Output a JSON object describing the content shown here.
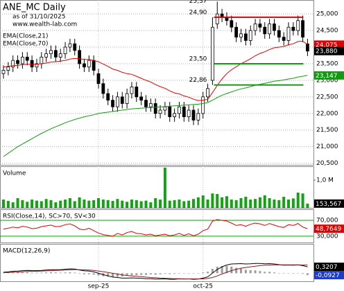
{
  "chart_data": [
    {
      "type": "candlestick",
      "title": "ANE_MC Daily",
      "subtitle": "as of 31/10/2025",
      "source": "www.wealth-lab.com",
      "categories": [
        null,
        null,
        null,
        null,
        null,
        null,
        null,
        null,
        null,
        null,
        null,
        null,
        null,
        null,
        null,
        null,
        null,
        null,
        null,
        null,
        "sep-25",
        null,
        null,
        null,
        null,
        null,
        null,
        null,
        null,
        null,
        null,
        null,
        null,
        null,
        null,
        null,
        null,
        null,
        null,
        null,
        null,
        null,
        "oct-25",
        null,
        null,
        null,
        null,
        null,
        null,
        null,
        null,
        null,
        null,
        null,
        null,
        null,
        null,
        null,
        null,
        null,
        null,
        null,
        null,
        null,
        null
      ],
      "open": [
        23.2,
        23.3,
        23.4,
        23.6,
        23.5,
        23.7,
        23.6,
        23.4,
        23.5,
        23.7,
        23.8,
        23.9,
        23.7,
        23.8,
        24.0,
        24.1,
        23.9,
        23.5,
        23.4,
        23.6,
        23.2,
        22.9,
        22.6,
        22.4,
        22.2,
        22.5,
        22.3,
        22.6,
        22.8,
        22.5,
        22.4,
        22.2,
        22.3,
        22.0,
        22.1,
        22.2,
        21.9,
        22.0,
        22.2,
        21.9,
        22.1,
        21.8,
        22.0,
        22.5,
        23.0,
        24.7,
        25.0,
        24.9,
        24.8,
        24.6,
        24.3,
        24.4,
        24.2,
        24.5,
        24.7,
        24.6,
        24.4,
        24.7,
        24.5,
        24.3,
        24.2,
        24.6,
        24.5,
        24.8,
        24.1
      ],
      "high": [
        23.45,
        23.55,
        23.75,
        23.75,
        23.85,
        23.85,
        23.75,
        23.65,
        23.85,
        23.95,
        24.05,
        24.05,
        23.95,
        24.15,
        24.25,
        24.25,
        24.05,
        23.65,
        23.75,
        23.75,
        23.35,
        23.05,
        22.75,
        22.55,
        22.65,
        22.65,
        22.75,
        22.95,
        22.95,
        22.65,
        22.55,
        22.45,
        22.45,
        22.25,
        22.35,
        22.35,
        22.15,
        22.35,
        22.35,
        22.25,
        22.25,
        22.15,
        22.65,
        22.9,
        24.9,
        25.37,
        25.15,
        25.05,
        24.95,
        24.75,
        24.55,
        24.55,
        24.65,
        24.85,
        24.85,
        24.75,
        24.85,
        24.85,
        24.65,
        24.45,
        24.75,
        24.75,
        24.95,
        24.95,
        24.25
      ],
      "low": [
        23.05,
        23.15,
        23.25,
        23.35,
        23.35,
        23.45,
        23.25,
        23.25,
        23.35,
        23.55,
        23.65,
        23.55,
        23.55,
        23.65,
        23.85,
        23.75,
        23.35,
        23.25,
        23.25,
        23.15,
        22.75,
        22.45,
        22.25,
        22.05,
        22.05,
        22.15,
        22.15,
        22.45,
        22.35,
        22.25,
        22.05,
        22.05,
        21.85,
        21.85,
        21.95,
        21.75,
        21.75,
        21.85,
        21.75,
        21.75,
        21.65,
        21.65,
        21.85,
        22.35,
        22.86,
        24.55,
        24.75,
        24.65,
        24.45,
        24.15,
        24.15,
        24.05,
        24.05,
        24.35,
        24.45,
        24.25,
        24.25,
        24.35,
        24.15,
        24.05,
        24.05,
        24.35,
        24.35,
        24.15,
        23.73
      ],
      "close": [
        23.3,
        23.4,
        23.6,
        23.5,
        23.7,
        23.6,
        23.4,
        23.5,
        23.7,
        23.8,
        23.9,
        23.7,
        23.8,
        24.0,
        24.1,
        23.9,
        23.5,
        23.4,
        23.6,
        23.3,
        22.9,
        22.6,
        22.4,
        22.2,
        22.5,
        22.3,
        22.6,
        22.8,
        22.5,
        22.4,
        22.2,
        22.3,
        22.0,
        22.1,
        22.2,
        21.9,
        22.0,
        22.2,
        21.9,
        22.1,
        21.8,
        22.0,
        22.5,
        22.75,
        24.6,
        25.0,
        24.9,
        24.8,
        24.6,
        24.3,
        24.4,
        24.2,
        24.5,
        24.7,
        24.6,
        24.4,
        24.7,
        24.5,
        24.3,
        24.2,
        24.6,
        24.5,
        24.8,
        24.3,
        23.88
      ],
      "last_label": "23,880",
      "ylim": [
        20.45,
        25.42
      ],
      "yticks": [
        {
          "value": 20.5,
          "label": "20,500"
        },
        {
          "value": 21,
          "label": "21,000"
        },
        {
          "value": 21.5,
          "label": "21,500"
        },
        {
          "value": 22,
          "label": "22,000"
        },
        {
          "value": 22.5,
          "label": "22,500"
        },
        {
          "value": 23,
          "label": "23,000"
        },
        {
          "value": 23.5,
          "label": "23,500"
        },
        {
          "value": 24,
          "label": "24,000"
        },
        {
          "value": 24.5,
          "label": "24,500"
        },
        {
          "value": 25,
          "label": "25,000"
        }
      ],
      "grid": true,
      "series": [
        {
          "name": "EMA(Close,21)",
          "color": "#e00000",
          "last_label": "24,075",
          "values": [
            23.4,
            23.42,
            23.44,
            23.45,
            23.47,
            23.48,
            23.48,
            23.48,
            23.5,
            23.52,
            23.55,
            23.56,
            23.58,
            23.6,
            23.64,
            23.66,
            23.65,
            23.63,
            23.63,
            23.6,
            23.56,
            23.49,
            23.42,
            23.34,
            23.3,
            23.24,
            23.2,
            23.18,
            23.12,
            23.06,
            23.0,
            22.95,
            22.87,
            22.81,
            22.76,
            22.68,
            22.62,
            22.59,
            22.53,
            22.49,
            22.43,
            22.39,
            22.4,
            22.43,
            22.63,
            22.85,
            23.04,
            23.2,
            23.32,
            23.41,
            23.5,
            23.57,
            23.65,
            23.74,
            23.81,
            23.86,
            23.93,
            23.98,
            24.0,
            24.02,
            24.07,
            24.1,
            24.17,
            24.18,
            24.075
          ]
        },
        {
          "name": "EMA(Close,70)",
          "color": "#139a13",
          "last_label": "23,147",
          "values": [
            20.7,
            20.8,
            20.9,
            21.0,
            21.08,
            21.16,
            21.24,
            21.32,
            21.4,
            21.47,
            21.54,
            21.6,
            21.66,
            21.72,
            21.77,
            21.82,
            21.86,
            21.9,
            21.93,
            21.96,
            22.0,
            22.02,
            22.04,
            22.06,
            22.08,
            22.1,
            22.12,
            22.14,
            22.15,
            22.16,
            22.17,
            22.18,
            22.19,
            22.2,
            22.21,
            22.22,
            22.23,
            22.24,
            22.25,
            22.26,
            22.27,
            22.28,
            22.3,
            22.33,
            22.4,
            22.48,
            22.55,
            22.6,
            22.65,
            22.7,
            22.74,
            22.77,
            22.81,
            22.85,
            22.88,
            22.91,
            22.94,
            22.97,
            22.99,
            23.01,
            23.04,
            23.06,
            23.1,
            23.12,
            23.147
          ]
        }
      ],
      "levels": [
        {
          "value": 24.9,
          "label": "24,90",
          "color": "#e00000"
        },
        {
          "value": 23.5,
          "label": "23,50",
          "color": "#139a13"
        },
        {
          "value": 22.86,
          "label": "22,86",
          "color": "#139a13"
        }
      ],
      "annotations": [
        {
          "value": 25.37,
          "label": "25,37"
        }
      ]
    },
    {
      "type": "bar",
      "title": "Volume",
      "color": "#13a313",
      "last_label": "153,567",
      "values": [
        300000,
        250000,
        200000,
        350000,
        280000,
        220000,
        300000,
        260000,
        240000,
        320000,
        280000,
        200000,
        260000,
        300000,
        350000,
        240000,
        380000,
        300000,
        260000,
        280000,
        350000,
        300000,
        280000,
        250000,
        320000,
        260000,
        220000,
        300000,
        280000,
        240000,
        260000,
        200000,
        350000,
        300000,
        1450000,
        260000,
        280000,
        300000,
        240000,
        260000,
        320000,
        380000,
        450000,
        300000,
        520000,
        500000,
        380000,
        420000,
        300000,
        280000,
        350000,
        400000,
        300000,
        320000,
        380000,
        450000,
        350000,
        300000,
        280000,
        400000,
        300000,
        340000,
        550000,
        520000,
        153567
      ],
      "ylim": [
        0,
        1500000
      ],
      "yticks": [
        {
          "value": 1000000,
          "label": "1,0 M"
        }
      ]
    },
    {
      "type": "line",
      "title": "RSI(Close,14), SC>70, SV<30",
      "grid": true,
      "grid_color": "#139a13",
      "series": [
        {
          "color": "#e00000",
          "last_label": "48,7649",
          "values": [
            48,
            50,
            53,
            51,
            55,
            53,
            49,
            50,
            54,
            56,
            58,
            54,
            55,
            59,
            61,
            56,
            48,
            46,
            50,
            44,
            38,
            34,
            32,
            30,
            37,
            33,
            39,
            42,
            37,
            36,
            33,
            35,
            31,
            33,
            35,
            31,
            33,
            37,
            32,
            36,
            31,
            35,
            44,
            48,
            68,
            72,
            70,
            68,
            63,
            57,
            59,
            55,
            60,
            63,
            61,
            57,
            62,
            58,
            54,
            52,
            59,
            57,
            62,
            53,
            48.7649
          ]
        }
      ],
      "ylim": [
        14,
        98
      ],
      "yticks": [
        {
          "value": 70,
          "label": "70,000"
        },
        {
          "value": 30,
          "label": "30,000"
        }
      ]
    },
    {
      "type": "line",
      "title": "MACD(12,26,9)",
      "series": [
        {
          "color": "#000000",
          "last_label": "0,3207",
          "values": [
            0.05,
            0.07,
            0.1,
            0.11,
            0.13,
            0.14,
            0.13,
            0.13,
            0.14,
            0.16,
            0.18,
            0.18,
            0.18,
            0.2,
            0.22,
            0.21,
            0.16,
            0.12,
            0.11,
            0.07,
            0.0,
            -0.07,
            -0.13,
            -0.19,
            -0.21,
            -0.24,
            -0.24,
            -0.23,
            -0.24,
            -0.25,
            -0.27,
            -0.27,
            -0.29,
            -0.29,
            -0.28,
            -0.3,
            -0.3,
            -0.28,
            -0.29,
            -0.28,
            -0.3,
            -0.29,
            -0.24,
            -0.18,
            0.01,
            0.19,
            0.32,
            0.41,
            0.46,
            0.47,
            0.48,
            0.46,
            0.47,
            0.49,
            0.49,
            0.47,
            0.48,
            0.46,
            0.43,
            0.4,
            0.41,
            0.4,
            0.42,
            0.38,
            0.3207
          ]
        },
        {
          "color": "#8b1a1a",
          "values": [
            0.03,
            0.04,
            0.05,
            0.06,
            0.08,
            0.09,
            0.1,
            0.1,
            0.11,
            0.12,
            0.13,
            0.14,
            0.15,
            0.16,
            0.17,
            0.18,
            0.18,
            0.17,
            0.16,
            0.14,
            0.11,
            0.08,
            0.04,
            0.0,
            -0.04,
            -0.08,
            -0.11,
            -0.13,
            -0.15,
            -0.17,
            -0.19,
            -0.21,
            -0.22,
            -0.24,
            -0.25,
            -0.26,
            -0.27,
            -0.27,
            -0.28,
            -0.28,
            -0.28,
            -0.28,
            -0.28,
            -0.26,
            -0.21,
            -0.13,
            -0.04,
            0.05,
            0.13,
            0.2,
            0.25,
            0.29,
            0.32,
            0.35,
            0.38,
            0.4,
            0.41,
            0.42,
            0.42,
            0.42,
            0.42,
            0.42,
            0.42,
            0.41,
            0.4134
          ]
        }
      ],
      "hist": {
        "color": "#9a9a9a",
        "label_color": "#1e3cc8",
        "last_label": "-0,0927",
        "values": [
          0.02,
          0.03,
          0.05,
          0.05,
          0.05,
          0.05,
          0.03,
          0.03,
          0.03,
          0.04,
          0.05,
          0.04,
          0.03,
          0.04,
          0.05,
          0.03,
          -0.02,
          -0.05,
          -0.05,
          -0.07,
          -0.11,
          -0.15,
          -0.17,
          -0.19,
          -0.17,
          -0.16,
          -0.13,
          -0.1,
          -0.09,
          -0.08,
          -0.08,
          -0.06,
          -0.07,
          -0.05,
          -0.03,
          -0.04,
          -0.03,
          -0.01,
          -0.01,
          0.0,
          -0.02,
          -0.01,
          0.04,
          0.08,
          0.22,
          0.32,
          0.36,
          0.36,
          0.33,
          0.27,
          0.23,
          0.17,
          0.15,
          0.14,
          0.11,
          0.07,
          0.07,
          0.04,
          0.01,
          -0.02,
          -0.01,
          -0.02,
          0.0,
          -0.03,
          -0.0927
        ]
      },
      "ylim": [
        -0.4,
        1.46
      ]
    }
  ]
}
